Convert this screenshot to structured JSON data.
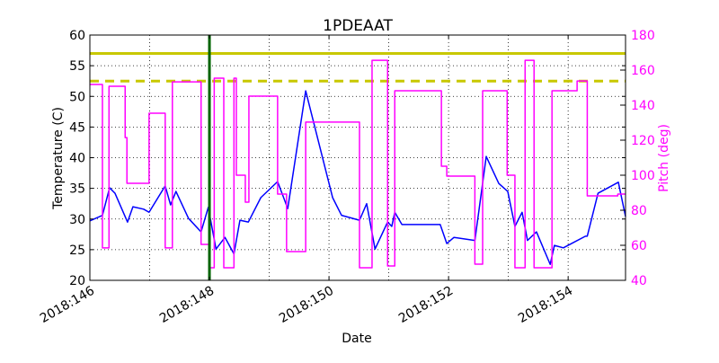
{
  "chart_data": {
    "type": "line",
    "title": "1PDEAAT",
    "xlabel": "Date",
    "ylabel": "Temperature (C)",
    "y2label": "Pitch (deg)",
    "xlim": [
      146,
      154.96
    ],
    "ylim": [
      20,
      60
    ],
    "y2lim": [
      40,
      180
    ],
    "grid": true,
    "x_ticks": [
      146,
      148,
      150,
      152,
      154
    ],
    "x_tick_labels": [
      "2018:146",
      "2018:148",
      "2018:150",
      "2018:152",
      "2018:154"
    ],
    "y_ticks": [
      20,
      25,
      30,
      35,
      40,
      45,
      50,
      55,
      60
    ],
    "y2_ticks": [
      40,
      60,
      80,
      100,
      120,
      140,
      160,
      180
    ],
    "colors": {
      "temperature": "#0000ff",
      "pitch": "#ff00ff",
      "limit": "#c8c800",
      "marker": "#006400",
      "right_axis": "#ff00ff"
    },
    "horizontal_lines": [
      {
        "y": 57.0,
        "style": "solid",
        "color": "#c8c800"
      },
      {
        "y": 52.5,
        "style": "dashed",
        "color": "#c8c800"
      }
    ],
    "vertical_lines": [
      {
        "x": 148.0,
        "color": "#006400"
      }
    ],
    "series": [
      {
        "axis": "left",
        "color": "#0000ff",
        "x": [
          146.0,
          146.21,
          146.33,
          146.42,
          146.63,
          146.72,
          146.9,
          146.99,
          147.26,
          147.35,
          147.44,
          147.65,
          147.86,
          147.98,
          148.11,
          148.26,
          148.41,
          148.51,
          148.65,
          148.86,
          149.14,
          149.31,
          149.61,
          149.91,
          150.06,
          150.21,
          150.51,
          150.63,
          150.77,
          150.98,
          151.05,
          151.1,
          151.22,
          151.86,
          151.97,
          152.09,
          152.44,
          152.63,
          152.84,
          152.99,
          153.11,
          153.23,
          153.32,
          153.47,
          153.7,
          153.77,
          153.92,
          154.29,
          154.32,
          154.5,
          154.84,
          154.96
        ],
        "y": [
          29.7,
          30.6,
          35.1,
          34.2,
          29.5,
          32.0,
          31.6,
          31.1,
          35.4,
          32.3,
          34.5,
          30.1,
          27.9,
          31.9,
          25.1,
          27.0,
          24.3,
          29.8,
          29.5,
          33.5,
          36.1,
          31.7,
          50.9,
          39.3,
          33.5,
          30.6,
          29.8,
          32.5,
          25.1,
          29.5,
          28.8,
          31.1,
          29.1,
          29.1,
          26.0,
          27.0,
          26.5,
          40.2,
          35.8,
          34.5,
          28.8,
          31.1,
          26.5,
          27.9,
          22.6,
          25.7,
          25.3,
          27.2,
          27.2,
          34.2,
          36.0,
          30.4
        ]
      },
      {
        "axis": "right",
        "color": "#ff00ff",
        "step": true,
        "x": [
          146.0,
          146.21,
          146.32,
          146.59,
          146.62,
          146.99,
          147.26,
          147.38,
          147.86,
          148.0,
          148.08,
          148.24,
          148.41,
          148.45,
          148.6,
          148.66,
          149.14,
          149.29,
          149.61,
          150.51,
          150.72,
          150.98,
          151.1,
          151.88,
          151.97,
          152.44,
          152.57,
          152.98,
          153.11,
          153.28,
          153.43,
          153.73,
          154.15,
          154.32,
          154.83,
          154.96
        ],
        "y": [
          151.8,
          58.5,
          150.8,
          121.5,
          95.4,
          135.4,
          58.5,
          153.3,
          60.5,
          47.2,
          155.4,
          47.2,
          155.4,
          100.0,
          84.6,
          145.1,
          89.2,
          56.4,
          130.3,
          47.2,
          165.6,
          48.2,
          148.2,
          105.1,
          99.5,
          49.2,
          148.2,
          100.0,
          47.2,
          165.6,
          47.2,
          148.2,
          153.8,
          88.2,
          89.2,
          89.2
        ]
      }
    ]
  }
}
